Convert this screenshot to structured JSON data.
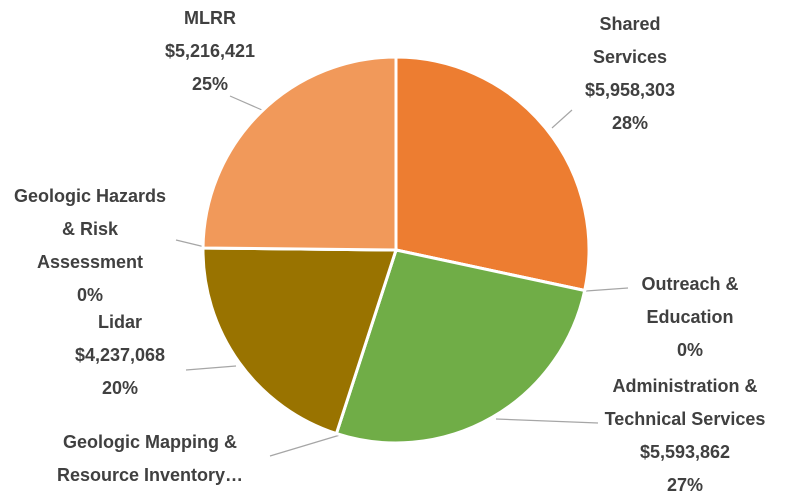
{
  "chart_data": {
    "type": "pie",
    "categories": [
      "Shared Services",
      "Outreach & Education",
      "Administration & Technical Services",
      "Geologic Mapping & Resource Inventory…",
      "Lidar",
      "Geologic Hazards & Risk Assessment",
      "MLRR"
    ],
    "values": [
      5958303,
      0,
      5593862,
      0,
      4237068,
      0,
      5216421
    ],
    "value_labels": [
      "$5,958,303",
      null,
      "$5,593,862",
      null,
      "$4,237,068",
      null,
      "$5,216,421"
    ],
    "percent_labels": [
      "28%",
      "0%",
      "27%",
      null,
      "20%",
      "0%",
      "25%"
    ],
    "colors": [
      "#ED7D31",
      "#A5A5A5",
      "#70AD47",
      "#255E91",
      "#997300",
      "#5B9BD5",
      "#F1995A"
    ]
  }
}
